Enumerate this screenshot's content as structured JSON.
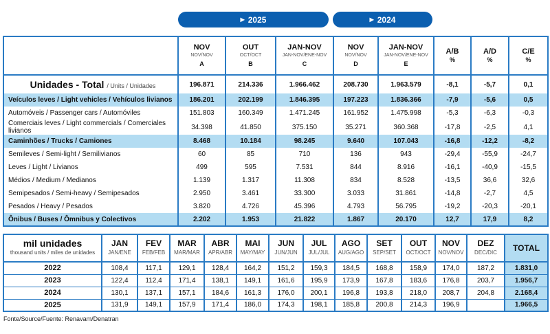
{
  "groups": [
    {
      "label": "2025",
      "icon": "play-triangle-icon"
    },
    {
      "label": "2024",
      "icon": "play-triangle-icon"
    }
  ],
  "top_table": {
    "headers": [
      {
        "main": "NOV",
        "sub": "NOV/NOV",
        "key": "A"
      },
      {
        "main": "OUT",
        "sub": "OCT/OCT",
        "key": "B"
      },
      {
        "main": "JAN-NOV",
        "sub": "JAN-NOV/ENE-NOV",
        "key": "C"
      },
      {
        "main": "NOV",
        "sub": "NOV/NOV",
        "key": "D"
      },
      {
        "main": "JAN-NOV",
        "sub": "JAN-NOV/ENE-NOV",
        "key": "E"
      },
      {
        "main": "A/B",
        "sub": "",
        "key": "%"
      },
      {
        "main": "A/D",
        "sub": "",
        "key": "%"
      },
      {
        "main": "C/E",
        "sub": "",
        "key": "%"
      }
    ],
    "total": {
      "label": "Unidades - Total",
      "sub": "/ Units / Unidades",
      "values": [
        "196.871",
        "214.336",
        "1.966.462",
        "208.730",
        "1.963.579",
        "-8,1",
        "-5,7",
        "0,1"
      ]
    },
    "rows": [
      {
        "label": "Veículos leves / Light vehicles / Vehículos livianos",
        "highlight": true,
        "values": [
          "186.201",
          "202.199",
          "1.846.395",
          "197.223",
          "1.836.366",
          "-7,9",
          "-5,6",
          "0,5"
        ]
      },
      {
        "label": "Automóveis / Passenger cars / Automóviles",
        "highlight": false,
        "values": [
          "151.803",
          "160.349",
          "1.471.245",
          "161.952",
          "1.475.998",
          "-5,3",
          "-6,3",
          "-0,3"
        ]
      },
      {
        "label": "Comerciais leves / Light commercials / Comerciales livianos",
        "highlight": false,
        "values": [
          "34.398",
          "41.850",
          "375.150",
          "35.271",
          "360.368",
          "-17,8",
          "-2,5",
          "4,1"
        ]
      },
      {
        "label": "Caminhões / Trucks / Camiones",
        "highlight": true,
        "values": [
          "8.468",
          "10.184",
          "98.245",
          "9.640",
          "107.043",
          "-16,8",
          "-12,2",
          "-8,2"
        ]
      },
      {
        "label": "Semileves / Semi-light / Semilivianos",
        "highlight": false,
        "values": [
          "60",
          "85",
          "710",
          "136",
          "943",
          "-29,4",
          "-55,9",
          "-24,7"
        ]
      },
      {
        "label": "Leves / Light / Livianos",
        "highlight": false,
        "values": [
          "499",
          "595",
          "7.531",
          "844",
          "8.916",
          "-16,1",
          "-40,9",
          "-15,5"
        ]
      },
      {
        "label": "Médios / Medium / Medianos",
        "highlight": false,
        "values": [
          "1.139",
          "1.317",
          "11.308",
          "834",
          "8.528",
          "-13,5",
          "36,6",
          "32,6"
        ]
      },
      {
        "label": "Semipesados / Semi-heavy / Semipesados",
        "highlight": false,
        "values": [
          "2.950",
          "3.461",
          "33.300",
          "3.033",
          "31.861",
          "-14,8",
          "-2,7",
          "4,5"
        ]
      },
      {
        "label": "Pesados / Heavy / Pesados",
        "highlight": false,
        "values": [
          "3.820",
          "4.726",
          "45.396",
          "4.793",
          "56.795",
          "-19,2",
          "-20,3",
          "-20,1"
        ]
      },
      {
        "label": "Ônibus / Buses / Ômnibus y Colectivos",
        "highlight": true,
        "values": [
          "2.202",
          "1.953",
          "21.822",
          "1.867",
          "20.170",
          "12,7",
          "17,9",
          "8,2"
        ]
      }
    ]
  },
  "monthly_table": {
    "title": "mil unidades",
    "subtitle": "thousand units / miles de unidades",
    "months": [
      {
        "main": "JAN",
        "sub": "JAN/ENE"
      },
      {
        "main": "FEV",
        "sub": "FEB/FEB"
      },
      {
        "main": "MAR",
        "sub": "MAR/MAR"
      },
      {
        "main": "ABR",
        "sub": "APR/ABR"
      },
      {
        "main": "MAI",
        "sub": "MAY/MAY"
      },
      {
        "main": "JUN",
        "sub": "JUN/JUN"
      },
      {
        "main": "JUL",
        "sub": "JUL/JUL"
      },
      {
        "main": "AGO",
        "sub": "AUG/AGO"
      },
      {
        "main": "SET",
        "sub": "SEP/SET"
      },
      {
        "main": "OUT",
        "sub": "OCT/OCT"
      },
      {
        "main": "NOV",
        "sub": "NOV/NOV"
      },
      {
        "main": "DEZ",
        "sub": "DEC/DIC"
      }
    ],
    "total_label": "TOTAL",
    "rows": [
      {
        "year": "2022",
        "values": [
          "108,4",
          "117,1",
          "129,1",
          "128,4",
          "164,2",
          "151,2",
          "159,3",
          "184,5",
          "168,8",
          "158,9",
          "174,0",
          "187,2"
        ],
        "total": "1.831,0"
      },
      {
        "year": "2023",
        "values": [
          "122,4",
          "112,4",
          "171,4",
          "138,1",
          "149,1",
          "161,6",
          "195,9",
          "173,9",
          "167,8",
          "183,6",
          "176,8",
          "203,7"
        ],
        "total": "1.956,7"
      },
      {
        "year": "2024",
        "values": [
          "130,1",
          "137,1",
          "157,1",
          "184,6",
          "161,3",
          "176,0",
          "200,1",
          "196,8",
          "193,8",
          "218,0",
          "208,7",
          "204,8"
        ],
        "total": "2.168,4"
      },
      {
        "year": "2025",
        "values": [
          "131,9",
          "149,1",
          "157,9",
          "171,4",
          "186,0",
          "174,3",
          "198,1",
          "185,8",
          "200,8",
          "214,3",
          "196,9",
          ""
        ],
        "total": "1.966,5"
      }
    ]
  },
  "source": "Fonte/Source/Fuente: Renavam/Denatran",
  "colors": {
    "accent": "#0b5fb0",
    "border": "#2a7bc4",
    "highlight": "#b3dcf2"
  }
}
